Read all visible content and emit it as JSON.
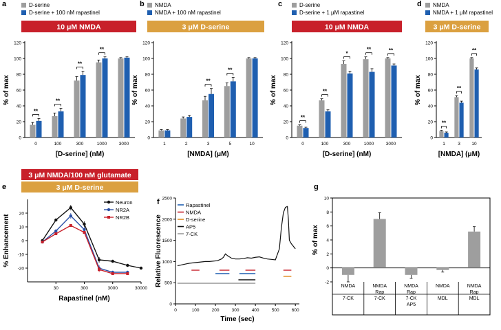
{
  "colors": {
    "gray": "#9e9e9e",
    "blue": "#1f5fb0",
    "red_banner": "#c8202a",
    "orange_banner": "#dba040",
    "black": "#000000",
    "neuron": "#111111",
    "nr2a": "#2a4fa6",
    "nr2b": "#c8202a",
    "trace_rap": "#1f5fb0",
    "trace_nmda": "#c8202a",
    "trace_dserine": "#e08a20",
    "trace_ap5": "#111111",
    "trace_7ck": "#999999"
  },
  "chart_data": [
    {
      "id": "a",
      "type": "bar",
      "panel_label": "a",
      "legend": [
        "D-serine",
        "D-serine + 100 nM rapastinel"
      ],
      "banner": "10 μM NMDA",
      "banner_color": "red",
      "categories": [
        "0",
        "100",
        "300",
        "1000",
        "3000"
      ],
      "series": [
        {
          "name": "D-serine",
          "values": [
            16,
            27,
            72,
            95,
            100
          ],
          "errors": [
            3,
            4,
            5,
            3,
            1
          ]
        },
        {
          "name": "D-serine + 100 nM rapastinel",
          "values": [
            21,
            33,
            79,
            100,
            101
          ],
          "errors": [
            3,
            4,
            5,
            2,
            1
          ]
        }
      ],
      "sig": [
        "**",
        "**",
        "**",
        "**",
        ""
      ],
      "ylabel": "% of max",
      "xlabel": "[D-serine] (nM)",
      "ylim": [
        0,
        120
      ],
      "yticks": [
        0,
        20,
        40,
        60,
        80,
        100,
        120
      ]
    },
    {
      "id": "b",
      "type": "bar",
      "panel_label": "b",
      "legend": [
        "NMDA",
        "NMDA + 100 nM rapastinel"
      ],
      "banner": "3 μM D-serine",
      "banner_color": "orange",
      "categories": [
        "1",
        "2",
        "3",
        "5",
        "10"
      ],
      "series": [
        {
          "name": "NMDA",
          "values": [
            9,
            24,
            47,
            65,
            100
          ],
          "errors": [
            1,
            2,
            5,
            4,
            1
          ]
        },
        {
          "name": "NMDA + 100 nM rapastinel",
          "values": [
            9,
            26,
            55,
            71,
            100
          ],
          "errors": [
            1,
            2,
            7,
            5,
            1
          ]
        }
      ],
      "sig": [
        "",
        "",
        "**",
        "**",
        ""
      ],
      "ylabel": "% of max",
      "xlabel": "[NMDA] (μM)",
      "ylim": [
        0,
        120
      ],
      "yticks": [
        0,
        20,
        40,
        60,
        80,
        100,
        120
      ]
    },
    {
      "id": "c",
      "type": "bar",
      "panel_label": "c",
      "legend": [
        "D-serine",
        "D-serine + 1 μM rapastinel"
      ],
      "banner": "10 μM NMDA",
      "banner_color": "red",
      "categories": [
        "0",
        "100",
        "300",
        "1000",
        "3000"
      ],
      "series": [
        {
          "name": "D-serine",
          "values": [
            15,
            47,
            93,
            99,
            100
          ],
          "errors": [
            1,
            2,
            4,
            3,
            1
          ]
        },
        {
          "name": "D-serine + 1 μM rapastinel",
          "values": [
            12,
            33,
            81,
            83,
            91
          ],
          "errors": [
            1,
            2,
            3,
            4,
            2
          ]
        }
      ],
      "sig": [
        "**",
        "**",
        "*",
        "**",
        "**"
      ],
      "ylabel": "% of max",
      "xlabel": "[D-serine] (nM)",
      "ylim": [
        0,
        120
      ],
      "yticks": [
        0,
        20,
        40,
        60,
        80,
        100,
        120
      ]
    },
    {
      "id": "d",
      "type": "bar",
      "panel_label": "d",
      "legend": [
        "NMDA",
        "NMDA + 1 μM rapastinel"
      ],
      "banner": "3 μM D-serine",
      "banner_color": "orange",
      "categories": [
        "1",
        "3",
        "10"
      ],
      "series": [
        {
          "name": "NMDA",
          "values": [
            8,
            51,
            100
          ],
          "errors": [
            1,
            2,
            1
          ]
        },
        {
          "name": "NMDA + 1 μM rapastinel",
          "values": [
            6,
            44,
            86
          ],
          "errors": [
            1,
            2,
            2
          ]
        }
      ],
      "sig": [
        "**",
        "**",
        "**"
      ],
      "ylabel": "% of max",
      "xlabel": "[NMDA] (μM)",
      "ylim": [
        0,
        120
      ],
      "yticks": [
        0,
        20,
        40,
        60,
        80,
        100,
        120
      ]
    },
    {
      "id": "e",
      "type": "line",
      "panel_label": "e",
      "banners": [
        "3 μM NMDA/100 nM glutamate",
        "3 μM D-serine"
      ],
      "xlabel": "Rapastinel (nM)",
      "ylabel": "% Enhancement",
      "xscale": "log",
      "xlim": [
        3,
        30000
      ],
      "xticks": [
        30,
        300,
        3000,
        30000
      ],
      "ylim": [
        -30,
        30
      ],
      "yticks": [
        -20,
        -10,
        0,
        10,
        20
      ],
      "x": [
        10,
        30,
        100,
        300,
        1000,
        3000,
        10000,
        30000
      ],
      "series": [
        {
          "name": "Neuron",
          "values": [
            0,
            15,
            24,
            12,
            -14,
            -15,
            -18,
            -20
          ],
          "errors": [
            1,
            1,
            2,
            2,
            2,
            1,
            1,
            1
          ],
          "marker": "circle"
        },
        {
          "name": "NR2A",
          "values": [
            -1,
            7,
            18,
            8,
            -20,
            -23,
            -23,
            null
          ],
          "errors": [
            1,
            1,
            2,
            2,
            2,
            1,
            1,
            0
          ],
          "marker": "circle"
        },
        {
          "name": "NR2B",
          "values": [
            -1,
            5,
            11,
            6,
            -21,
            -24,
            -24,
            null
          ],
          "errors": [
            1,
            1,
            1,
            1,
            2,
            1,
            1,
            0
          ],
          "marker": "square"
        }
      ]
    },
    {
      "id": "f",
      "type": "line",
      "panel_label": "f",
      "legend": [
        "Rapastinel",
        "NMDA",
        "D-serine",
        "AP5",
        "7-CK"
      ],
      "xlabel": "Time (sec)",
      "ylabel": "Relative Fluorescence",
      "xlim": [
        0,
        620
      ],
      "xticks": [
        0,
        100,
        200,
        300,
        400,
        500,
        600
      ],
      "ylim": [
        0,
        2500
      ],
      "yticks": [
        0,
        500,
        1000,
        1500,
        2000,
        2500
      ],
      "trace_x": [
        10,
        30,
        50,
        70,
        90,
        110,
        130,
        150,
        170,
        190,
        210,
        230,
        240,
        250,
        260,
        270,
        280,
        290,
        300,
        320,
        340,
        360,
        380,
        400,
        420,
        440,
        460,
        480,
        500,
        520,
        530,
        540,
        550,
        560,
        565,
        570,
        580,
        590,
        600
      ],
      "trace_y": [
        900,
        920,
        940,
        960,
        970,
        980,
        990,
        1000,
        1000,
        1010,
        1020,
        1060,
        1100,
        1180,
        1140,
        1110,
        1080,
        1070,
        1060,
        1060,
        1070,
        1090,
        1080,
        1100,
        1110,
        1080,
        1060,
        1050,
        1040,
        1300,
        1800,
        2150,
        2280,
        2300,
        2000,
        1500,
        1420,
        1360,
        1300
      ],
      "treatments": [
        {
          "name": "Rapastinel",
          "segments": [
            [
              200,
              270
            ],
            [
              320,
              400
            ]
          ]
        },
        {
          "name": "NMDA",
          "segments": [
            [
              80,
              120
            ],
            [
              220,
              270
            ],
            [
              350,
              400
            ],
            [
              540,
              580
            ]
          ]
        },
        {
          "name": "D-serine",
          "segments": [
            [
              540,
              580
            ]
          ]
        },
        {
          "name": "AP5",
          "segments": [
            [
              315,
              400
            ]
          ]
        },
        {
          "name": "7-CK",
          "segments": [
            [
              10,
              400
            ]
          ]
        }
      ]
    },
    {
      "id": "g",
      "type": "bar",
      "panel_label": "g",
      "ylabel": "% of max",
      "ylim": [
        -2,
        10
      ],
      "yticks": [
        -2,
        0,
        2,
        4,
        6,
        8,
        10
      ],
      "categories": [
        {
          "lines": [
            "NMDA",
            "",
            "7-CK"
          ]
        },
        {
          "lines": [
            "NMDA",
            "Rap",
            "7-CK"
          ]
        },
        {
          "lines": [
            "NMDA",
            "Rap",
            "7-CK",
            "AP5"
          ]
        },
        {
          "lines": [
            "NMDA",
            "",
            "MDL"
          ]
        },
        {
          "lines": [
            "NMDA",
            "Rap",
            "MDL"
          ]
        }
      ],
      "values": [
        -1,
        7,
        -1,
        -0.3,
        5.2
      ],
      "errors": [
        1,
        0.9,
        0.5,
        0.3,
        0.7
      ]
    }
  ]
}
